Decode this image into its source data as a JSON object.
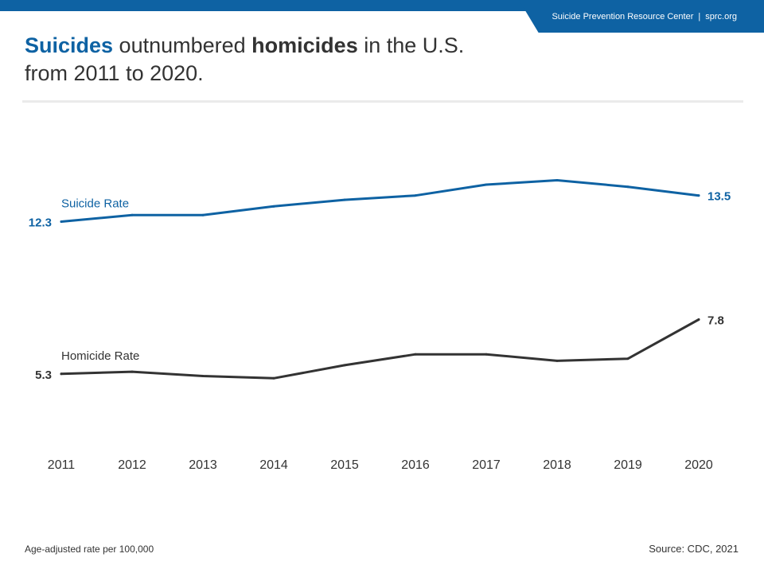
{
  "header": {
    "org_name": "Suicide Prevention Resource Center",
    "separator": "|",
    "site": "sprc.org"
  },
  "title": {
    "part1": "Suicides",
    "part2": " outnumbered ",
    "part3": "homicides",
    "part4": " in the U.S.",
    "line2": "from 2011 to 2020."
  },
  "footer": {
    "note": "Age-adjusted rate per 100,000",
    "source": "Source: CDC, 2021"
  },
  "colors": {
    "suicide": "#0e62a3",
    "homicide": "#333333"
  },
  "chart_data": {
    "type": "line",
    "title": "Suicides outnumbered homicides in the U.S. from 2011 to 2020.",
    "xlabel": "",
    "ylabel": "",
    "categories": [
      "2011",
      "2012",
      "2013",
      "2014",
      "2015",
      "2016",
      "2017",
      "2018",
      "2019",
      "2020"
    ],
    "ylim": [
      2,
      17
    ],
    "grid": false,
    "series": [
      {
        "name": "Suicide Rate",
        "values": [
          12.3,
          12.6,
          12.6,
          13.0,
          13.3,
          13.5,
          14.0,
          14.2,
          13.9,
          13.5
        ],
        "color": "#0e62a3",
        "labels": [
          {
            "index": 0,
            "text": "12.3"
          },
          {
            "index": 9,
            "text": "13.5"
          }
        ]
      },
      {
        "name": "Homicide Rate",
        "values": [
          5.3,
          5.4,
          5.2,
          5.1,
          5.7,
          6.2,
          6.2,
          5.9,
          6.0,
          7.8
        ],
        "color": "#333333",
        "labels": [
          {
            "index": 0,
            "text": "5.3"
          },
          {
            "index": 9,
            "text": "7.8"
          }
        ]
      }
    ]
  }
}
